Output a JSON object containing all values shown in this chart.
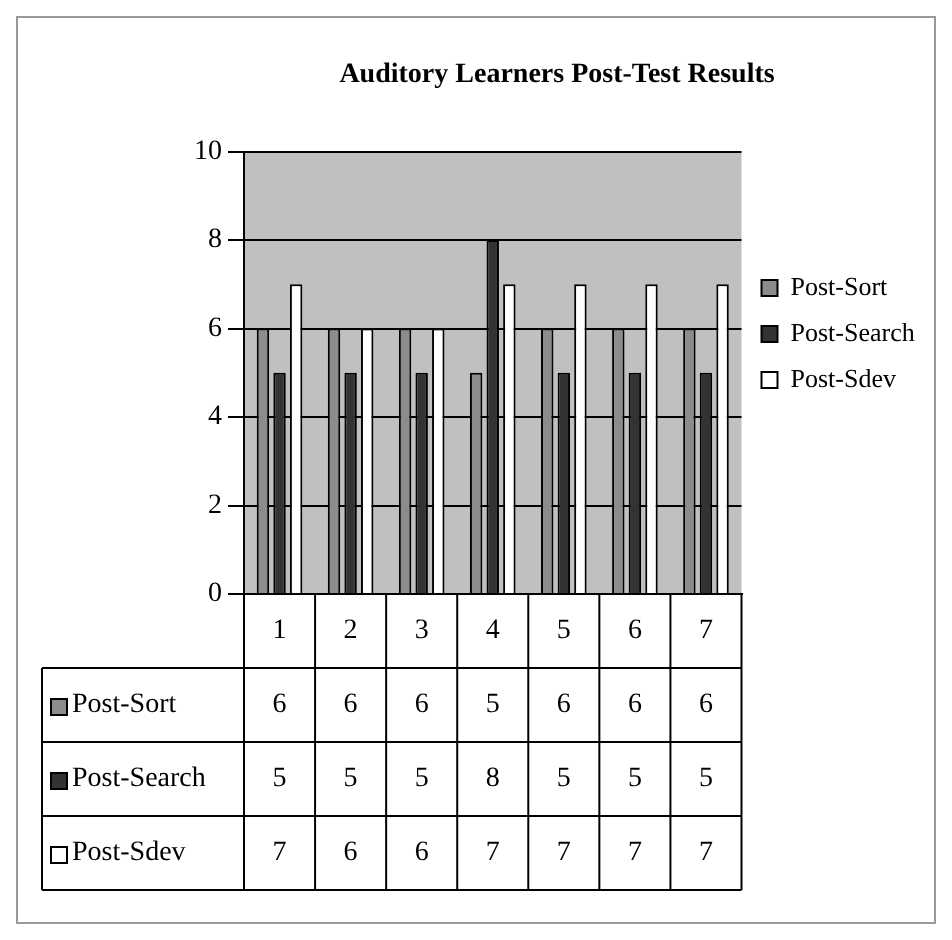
{
  "chart_data": {
    "type": "bar",
    "title": "Auditory Learners Post-Test Results",
    "categories": [
      "1",
      "2",
      "3",
      "4",
      "5",
      "6",
      "7"
    ],
    "series": [
      {
        "name": "Post-Sort",
        "color": "#8c8c8c",
        "values": [
          6,
          6,
          6,
          5,
          6,
          6,
          6
        ]
      },
      {
        "name": "Post-Search",
        "color": "#333333",
        "values": [
          5,
          5,
          5,
          8,
          5,
          5,
          5
        ]
      },
      {
        "name": "Post-Sdev",
        "color": "#ffffff",
        "values": [
          7,
          6,
          6,
          7,
          7,
          7,
          7
        ]
      }
    ],
    "ylim": [
      0,
      10
    ],
    "yticks": [
      0,
      2,
      4,
      6,
      8,
      10
    ],
    "grid": "y",
    "legend": "right",
    "data_labels": true
  }
}
